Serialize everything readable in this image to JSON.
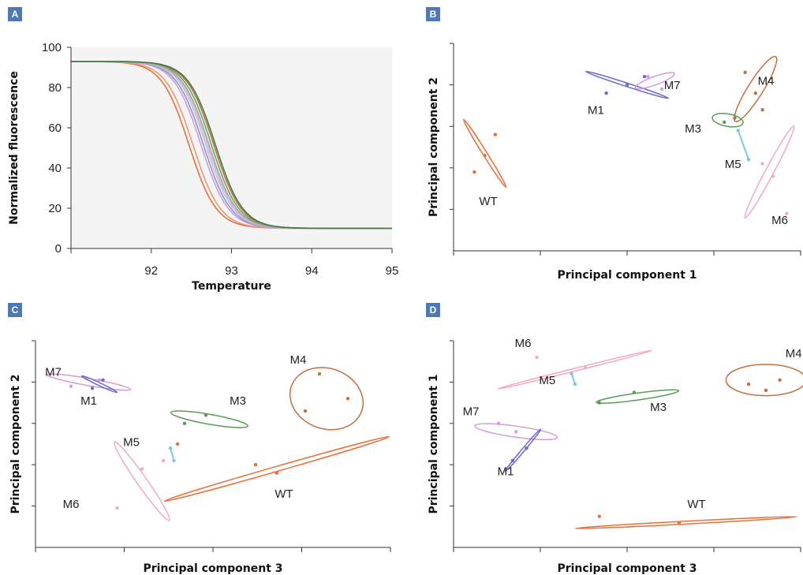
{
  "chart_data": [
    {
      "panel": "A",
      "type": "line",
      "xlabel": "Temperature",
      "ylabel": "Normalized fluorescence",
      "xlim": [
        91,
        95
      ],
      "ylim": [
        0,
        100
      ],
      "xticks": [
        92,
        93,
        94,
        95
      ],
      "yticks": [
        0,
        20,
        40,
        60,
        80,
        100
      ],
      "curve_model": "sigmoid",
      "series": [
        {
          "color": "#e87038",
          "midpoint": 92.47,
          "top": 93,
          "bottom": 10
        },
        {
          "color": "#e89a7a",
          "midpoint": 92.52,
          "top": 93,
          "bottom": 10
        },
        {
          "color": "#c8a0d8",
          "midpoint": 92.62,
          "top": 93,
          "bottom": 10
        },
        {
          "color": "#9b8fd0",
          "midpoint": 92.65,
          "top": 93,
          "bottom": 10
        },
        {
          "color": "#a6d0e8",
          "midpoint": 92.68,
          "top": 93,
          "bottom": 10
        },
        {
          "color": "#f2a8c8",
          "midpoint": 92.7,
          "top": 93,
          "bottom": 10
        },
        {
          "color": "#6aa26e",
          "midpoint": 92.75,
          "top": 93,
          "bottom": 10
        },
        {
          "color": "#c0703a",
          "midpoint": 92.78,
          "top": 93,
          "bottom": 10
        },
        {
          "color": "#9aaa98",
          "midpoint": 92.72,
          "top": 93,
          "bottom": 10
        },
        {
          "color": "#3f7a48",
          "midpoint": 92.8,
          "top": 93,
          "bottom": 10
        }
      ]
    },
    {
      "panel": "B",
      "type": "scatter",
      "xlabel": "Principal component 1",
      "ylabel": "Principal component 2",
      "xlim": [
        0,
        10
      ],
      "ylim": [
        0,
        5
      ],
      "clusters": [
        {
          "label": "WT",
          "color": "#e8703a",
          "points": [
            [
              0.6,
              1.9
            ],
            [
              0.9,
              2.3
            ],
            [
              1.2,
              2.8
            ]
          ],
          "ellipse": {
            "cx": 0.9,
            "cy": 2.35,
            "rx": 1.15,
            "ry": 0.06,
            "angle": 58
          },
          "label_pos": [
            1.0,
            1.1
          ]
        },
        {
          "label": "M1",
          "color": "#6a6ad0",
          "points": [
            [
              4.4,
              3.8
            ],
            [
              5.0,
              4.0
            ],
            [
              5.5,
              4.2
            ]
          ],
          "ellipse": {
            "cx": 5.0,
            "cy": 4.0,
            "rx": 1.25,
            "ry": 0.05,
            "angle": 18
          },
          "label_pos": [
            4.1,
            3.3
          ]
        },
        {
          "label": "M7",
          "color": "#d89ad8",
          "points": [
            [
              5.6,
              4.2
            ],
            [
              6.0,
              3.9
            ]
          ],
          "ellipse": {
            "cx": 5.8,
            "cy": 4.1,
            "rx": 0.6,
            "ry": 0.12,
            "angle": -20
          },
          "label_pos": [
            6.3,
            3.9
          ]
        },
        {
          "label": "M3",
          "color": "#5a9a5a",
          "points": [
            [
              7.8,
              3.1
            ],
            [
              8.1,
              3.2
            ]
          ],
          "ellipse": {
            "cx": 7.9,
            "cy": 3.15,
            "rx": 0.45,
            "ry": 0.18,
            "angle": 10
          },
          "label_pos": [
            6.9,
            2.85
          ]
        },
        {
          "label": "M4",
          "color": "#c0703a",
          "points": [
            [
              8.4,
              4.3
            ],
            [
              8.7,
              3.8
            ],
            [
              8.9,
              3.4
            ]
          ],
          "ellipse": {
            "cx": 8.7,
            "cy": 3.9,
            "rx": 1.1,
            "ry": 0.22,
            "angle": -58
          },
          "label_pos": [
            9.0,
            4.0
          ]
        },
        {
          "label": "M5",
          "color": "#7ac8e8",
          "points": [
            [
              8.2,
              2.9
            ],
            [
              8.5,
              2.2
            ]
          ],
          "ellipse": null,
          "label_pos": [
            8.05,
            2.0
          ]
        },
        {
          "label": "M6",
          "color": "#f2a8c8",
          "points": [
            [
              8.9,
              2.1
            ],
            [
              9.2,
              1.8
            ],
            [
              9.6,
              0.9
            ]
          ],
          "ellipse": {
            "cx": 9.1,
            "cy": 1.9,
            "rx": 1.5,
            "ry": 0.12,
            "angle": -62
          },
          "label_pos": [
            9.4,
            0.65
          ]
        }
      ]
    },
    {
      "panel": "C",
      "type": "scatter",
      "xlabel": "Principal component 3",
      "ylabel": "Principal component 2",
      "xlim": [
        0,
        10
      ],
      "ylim": [
        0,
        5
      ],
      "clusters": [
        {
          "label": "M7",
          "color": "#d89ad8",
          "points": [
            [
              1.0,
              3.9
            ],
            [
              1.8,
              4.05
            ]
          ],
          "ellipse": {
            "cx": 1.5,
            "cy": 4.0,
            "rx": 1.2,
            "ry": 0.1,
            "angle": 10
          },
          "label_pos": [
            0.5,
            4.15
          ]
        },
        {
          "label": "M1",
          "color": "#6a6ad0",
          "points": [
            [
              1.6,
              3.85
            ],
            [
              1.9,
              4.05
            ]
          ],
          "ellipse": {
            "cx": 1.8,
            "cy": 3.95,
            "rx": 0.55,
            "ry": 0.04,
            "angle": 25
          },
          "label_pos": [
            1.5,
            3.45
          ]
        },
        {
          "label": "M3",
          "color": "#5a9a5a",
          "points": [
            [
              4.2,
              3.0
            ],
            [
              4.8,
              3.2
            ]
          ],
          "ellipse": {
            "cx": 4.9,
            "cy": 3.1,
            "rx": 1.1,
            "ry": 0.14,
            "angle": 10
          },
          "label_pos": [
            5.7,
            3.45
          ]
        },
        {
          "label": "M4",
          "color": "#c0703a",
          "points": [
            [
              7.6,
              3.3
            ],
            [
              8.0,
              4.2
            ],
            [
              8.8,
              3.6
            ]
          ],
          "ellipse": {
            "cx": 8.2,
            "cy": 3.6,
            "rx": 1.05,
            "ry": 0.85,
            "angle": 20
          },
          "label_pos": [
            7.4,
            4.45
          ]
        },
        {
          "label": "M5",
          "color": "#7ac8e8",
          "points": [
            [
              3.8,
              2.4
            ],
            [
              3.9,
              2.1
            ]
          ],
          "ellipse": null,
          "label_pos": [
            2.7,
            2.45
          ]
        },
        {
          "label": "M6",
          "color": "#f2a8c8",
          "points": [
            [
              2.3,
              0.95
            ],
            [
              3.0,
              1.9
            ],
            [
              3.6,
              2.1
            ]
          ],
          "ellipse": {
            "cx": 3.0,
            "cy": 1.6,
            "rx": 1.35,
            "ry": 0.14,
            "angle": 55
          },
          "label_pos": [
            1.0,
            0.95
          ]
        },
        {
          "label": "WT",
          "color": "#e8703a",
          "points": [
            [
              4.0,
              2.5
            ],
            [
              6.2,
              2.0
            ],
            [
              6.8,
              1.8
            ]
          ],
          "ellipse": {
            "cx": 6.8,
            "cy": 1.9,
            "rx": 3.3,
            "ry": 0.07,
            "angle": -16
          },
          "label_pos": [
            7.0,
            1.2
          ]
        }
      ]
    },
    {
      "panel": "D",
      "type": "scatter",
      "xlabel": "Principal component 3",
      "ylabel": "Principal component 1",
      "xlim": [
        0,
        10
      ],
      "ylim": [
        0,
        5
      ],
      "clusters": [
        {
          "label": "M6",
          "color": "#f2a8c8",
          "points": [
            [
              2.4,
              4.6
            ],
            [
              3.8,
              4.35
            ]
          ],
          "ellipse": {
            "cx": 3.5,
            "cy": 4.3,
            "rx": 2.3,
            "ry": 0.04,
            "angle": -14
          },
          "label_pos": [
            2.0,
            4.85
          ]
        },
        {
          "label": "M5",
          "color": "#7ac8e8",
          "points": [
            [
              3.5,
              3.95
            ],
            [
              3.4,
              4.2
            ]
          ],
          "ellipse": null,
          "label_pos": [
            2.7,
            3.95
          ]
        },
        {
          "label": "M4",
          "color": "#c0703a",
          "points": [
            [
              8.5,
              3.95
            ],
            [
              9.0,
              3.8
            ],
            [
              9.4,
              4.05
            ]
          ],
          "ellipse": {
            "cx": 9.0,
            "cy": 4.05,
            "rx": 1.15,
            "ry": 0.45,
            "angle": 0
          },
          "label_pos": [
            9.8,
            4.6
          ]
        },
        {
          "label": "M3",
          "color": "#5a9a5a",
          "points": [
            [
              4.2,
              3.5
            ],
            [
              5.2,
              3.75
            ]
          ],
          "ellipse": {
            "cx": 5.3,
            "cy": 3.65,
            "rx": 1.2,
            "ry": 0.1,
            "angle": -8
          },
          "label_pos": [
            5.9,
            3.3
          ]
        },
        {
          "label": "M7",
          "color": "#d89ad8",
          "points": [
            [
              1.3,
              3.0
            ],
            [
              1.8,
              2.8
            ]
          ],
          "ellipse": {
            "cx": 1.8,
            "cy": 2.8,
            "rx": 1.2,
            "ry": 0.16,
            "angle": 8
          },
          "label_pos": [
            0.5,
            3.2
          ]
        },
        {
          "label": "M1",
          "color": "#6a6ad0",
          "points": [
            [
              1.7,
              2.1
            ],
            [
              2.1,
              2.4
            ]
          ],
          "ellipse": {
            "cx": 2.0,
            "cy": 2.35,
            "rx": 0.8,
            "ry": 0.04,
            "angle": -50
          },
          "label_pos": [
            1.5,
            1.75
          ]
        },
        {
          "label": "WT",
          "color": "#e8703a",
          "points": [
            [
              4.2,
              0.75
            ],
            [
              6.5,
              0.6
            ]
          ],
          "ellipse": {
            "cx": 6.7,
            "cy": 0.6,
            "rx": 3.2,
            "ry": 0.04,
            "angle": -3
          },
          "label_pos": [
            7.0,
            0.95
          ]
        }
      ]
    }
  ],
  "panels": [
    {
      "badge": "A"
    },
    {
      "badge": "B"
    },
    {
      "badge": "C"
    },
    {
      "badge": "D"
    }
  ]
}
